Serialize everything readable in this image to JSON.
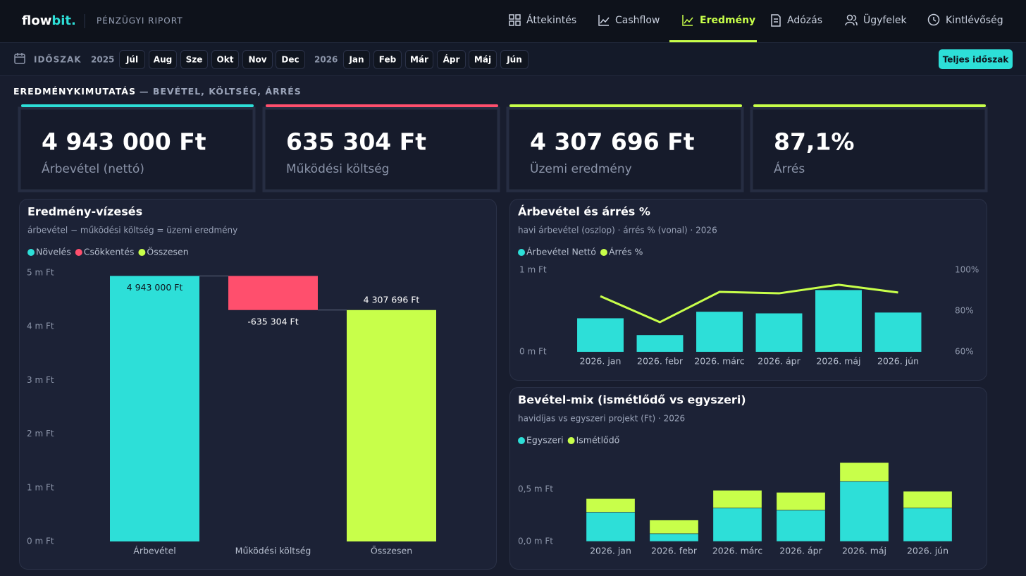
{
  "header": {
    "brand": {
      "main": "flow",
      "accent": "bit."
    },
    "subtitle": "PÉNZÜGYI RIPORT"
  },
  "nav": {
    "items": [
      "Áttekintés",
      "Cashflow",
      "Eredmény",
      "Adózás",
      "Ügyfelek",
      "Kintlévőség"
    ],
    "active": 2
  },
  "period": {
    "label": "IDŐSZAK",
    "groups": [
      {
        "year": "2025",
        "months": [
          "Júl",
          "Aug",
          "Sze",
          "Okt",
          "Nov",
          "Dec"
        ]
      },
      {
        "year": "2026",
        "months": [
          "Jan",
          "Feb",
          "Már",
          "Ápr",
          "Máj",
          "Jún"
        ]
      }
    ],
    "button": "Teljes időszak"
  },
  "section": {
    "title": "EREDMÉNYKIMUTATÁS",
    "subtitle": "— BEVÉTEL, KÖLTSÉG, ÁRRÉS"
  },
  "kpis": [
    {
      "value": "4 943 000 Ft",
      "label": "Árbevétel (nettó)",
      "color": "#2ddfd8"
    },
    {
      "value": "635 304 Ft",
      "label": "Működési költség",
      "color": "#ff4f6d"
    },
    {
      "value": "4 307 696 Ft",
      "label": "Üzemi eredmény",
      "color": "#c8ff4a"
    },
    {
      "value": "87,1%",
      "label": "Árrés",
      "color": "#c8ff4a"
    }
  ],
  "chart_data": [
    {
      "type": "waterfall",
      "title": "Eredmény-vízesés",
      "subtitle": "árbevétel − működési költség = üzemi eredmény",
      "legend": [
        {
          "name": "Növelés",
          "color": "#2ddfd8"
        },
        {
          "name": "Csökkentés",
          "color": "#ff4f6d"
        },
        {
          "name": "Összesen",
          "color": "#c8ff4a"
        }
      ],
      "categories": [
        "Árbevétel",
        "Működési költség",
        "Összesen"
      ],
      "values": [
        4943000,
        -635304,
        4307696
      ],
      "value_labels": [
        "4 943 000 Ft",
        "-635 304 Ft",
        "4 307 696 Ft"
      ],
      "bar_legend": [
        0,
        1,
        2
      ],
      "is_total": [
        false,
        false,
        true
      ],
      "ylim": [
        0,
        5000000
      ],
      "yticks": [
        {
          "value": 0,
          "label": "0 m Ft"
        },
        {
          "value": 1000000,
          "label": "1 m Ft"
        },
        {
          "value": 2000000,
          "label": "2 m Ft"
        },
        {
          "value": 3000000,
          "label": "3 m Ft"
        },
        {
          "value": 4000000,
          "label": "4 m Ft"
        },
        {
          "value": 5000000,
          "label": "5 m Ft"
        }
      ]
    },
    {
      "type": "bar-line",
      "title": "Árbevétel és árrés %",
      "subtitle": "havi árbevétel (oszlop) · árrés % (vonal) · 2026",
      "categories": [
        "2026. jan",
        "2026. febr",
        "2026. márc",
        "2026. ápr",
        "2026. máj",
        "2026. jún"
      ],
      "series": [
        {
          "name": "Árbevétel Nettó",
          "color": "#2ddfd8",
          "type": "bar",
          "values": [
            410000,
            205000,
            490000,
            470000,
            755000,
            480000
          ]
        },
        {
          "name": "Árrés %",
          "color": "#c8ff4a",
          "type": "line",
          "axis": "y2",
          "values": [
            87.2,
            74.5,
            89.3,
            88.6,
            92.8,
            89.0
          ]
        }
      ],
      "ylim": [
        0,
        1000000
      ],
      "yticks": [
        {
          "value": 0,
          "label": "0 m Ft"
        },
        {
          "value": 1000000,
          "label": "1 m Ft"
        }
      ],
      "y2lim": [
        60,
        100
      ],
      "y2ticks": [
        {
          "value": 60,
          "label": "60%"
        },
        {
          "value": 80,
          "label": "80%"
        },
        {
          "value": 100,
          "label": "100%"
        }
      ]
    },
    {
      "type": "stacked-bar",
      "title": "Bevétel-mix (ismétlődő vs egyszeri)",
      "subtitle": "havidíjas vs egyszeri projekt (Ft) · 2026",
      "categories": [
        "2026. jan",
        "2026. febr",
        "2026. márc",
        "2026. ápr",
        "2026. máj",
        "2026. jún"
      ],
      "series": [
        {
          "name": "Egyszeri",
          "color": "#2ddfd8",
          "values": [
            280000,
            75000,
            320000,
            300000,
            575000,
            320000
          ]
        },
        {
          "name": "Ismétlődő",
          "color": "#c8ff4a",
          "values": [
            130000,
            130000,
            170000,
            170000,
            180000,
            160000
          ]
        }
      ],
      "ylim": [
        0,
        850000
      ],
      "yticks": [
        {
          "value": 0,
          "label": "0,0 m Ft"
        },
        {
          "value": 500000,
          "label": "0,5 m Ft"
        }
      ]
    }
  ]
}
